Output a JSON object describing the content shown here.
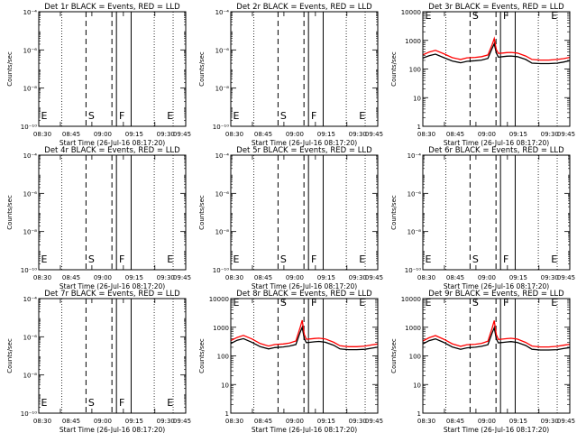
{
  "chart_data": [
    {
      "type": "line",
      "title": "Det 1r BLACK = Events, RED = LLD",
      "xlabel": "Start Time (26-Jul-16 08:17:20)",
      "ylabel": "Counts/sec",
      "xlim": [
        0,
        70
      ],
      "y_scale": "log",
      "ylim": [
        1e-10,
        0.0001
      ],
      "y_ticks": [
        "10⁻¹⁰",
        "10⁻⁸",
        "10⁻⁶",
        "10⁻⁴"
      ],
      "y_tick_exps": [
        -10,
        -8,
        -6,
        -4
      ],
      "x_ticks": [
        "08:30",
        "08:45",
        "09:00",
        "09:15",
        "09:30",
        "09:45"
      ],
      "x_tick_mins": [
        -4.7,
        10.3,
        25.3,
        40.3,
        55.3,
        70.3
      ],
      "markers": [
        {
          "label": "E",
          "x": 0,
          "style": "none"
        },
        {
          "label": "S",
          "x": 22.5,
          "style": "dashed"
        },
        {
          "label": "F",
          "x": 37,
          "style": "dashed-solid"
        },
        {
          "label": "",
          "x": 44,
          "style": "solid"
        },
        {
          "label": "E",
          "x": 60,
          "style": "none"
        }
      ],
      "dotted_x": [
        0,
        11,
        55,
        64
      ],
      "series": []
    },
    {
      "type": "line",
      "title": "Det 2r BLACK = Events, RED = LLD",
      "xlabel": "Start Time (26-Jul-16 08:17:20)",
      "ylabel": "Counts/sec",
      "xlim": [
        0,
        70
      ],
      "y_scale": "log",
      "ylim": [
        1e-10,
        0.0001
      ],
      "y_ticks": [
        "10⁻¹⁰",
        "10⁻⁸",
        "10⁻⁶",
        "10⁻⁴"
      ],
      "y_tick_exps": [
        -10,
        -8,
        -6,
        -4
      ],
      "x_ticks": [
        "08:30",
        "08:45",
        "09:00",
        "09:15",
        "09:30",
        "09:45"
      ],
      "x_tick_mins": [
        -4.7,
        10.3,
        25.3,
        40.3,
        55.3,
        70.3
      ],
      "markers": [
        {
          "label": "E",
          "x": 0,
          "style": "none"
        },
        {
          "label": "S",
          "x": 22.5,
          "style": "dashed"
        },
        {
          "label": "F",
          "x": 37,
          "style": "dashed-solid"
        },
        {
          "label": "",
          "x": 44,
          "style": "solid"
        },
        {
          "label": "E",
          "x": 60,
          "style": "none"
        }
      ],
      "dotted_x": [
        0,
        11,
        55,
        64
      ],
      "series": []
    },
    {
      "type": "line",
      "title": "Det 3r BLACK = Events, RED = LLD",
      "xlabel": "Start Time (26-Jul-16 08:17:20)",
      "ylabel": "Counts/sec",
      "xlim": [
        0,
        70
      ],
      "y_scale": "log",
      "ylim": [
        1,
        10000
      ],
      "y_ticks": [
        "1",
        "10",
        "100",
        "1000",
        "10000"
      ],
      "y_tick_exps": [
        0,
        1,
        2,
        3,
        4
      ],
      "x_ticks": [
        "08:30",
        "08:45",
        "09:00",
        "09:15",
        "09:30",
        "09:45"
      ],
      "x_tick_mins": [
        -4.7,
        10.3,
        25.3,
        40.3,
        55.3,
        70.3
      ],
      "markers": [
        {
          "label": "E",
          "x": 0,
          "style": "none"
        },
        {
          "label": "S",
          "x": 22.5,
          "style": "dashed"
        },
        {
          "label": "F",
          "x": 37,
          "style": "dashed-solid"
        },
        {
          "label": "",
          "x": 44,
          "style": "solid"
        },
        {
          "label": "E",
          "x": 60,
          "style": "none"
        }
      ],
      "dotted_x": [
        0,
        11,
        55,
        64
      ],
      "series": [
        {
          "name": "Events",
          "color": "#000000",
          "x": [
            0,
            3,
            6,
            10,
            14,
            18,
            21,
            25,
            28,
            31,
            33,
            34,
            35,
            36,
            37,
            38,
            40,
            42,
            45,
            49,
            52,
            56,
            60,
            64,
            67,
            70
          ],
          "y": [
            240,
            290,
            330,
            250,
            190,
            165,
            185,
            195,
            205,
            235,
            520,
            760,
            360,
            260,
            265,
            270,
            280,
            285,
            270,
            215,
            160,
            155,
            155,
            160,
            175,
            195
          ]
        },
        {
          "name": "LLD",
          "color": "#ff0000",
          "x": [
            0,
            3,
            6,
            10,
            14,
            18,
            21,
            25,
            28,
            31,
            33,
            34,
            35,
            36,
            37,
            38,
            40,
            42,
            45,
            49,
            52,
            56,
            60,
            64,
            67,
            70
          ],
          "y": [
            310,
            390,
            450,
            340,
            250,
            215,
            245,
            255,
            270,
            310,
            700,
            1150,
            480,
            350,
            355,
            360,
            375,
            380,
            360,
            285,
            215,
            205,
            205,
            215,
            230,
            255
          ]
        }
      ]
    },
    {
      "type": "line",
      "title": "Det 4r BLACK = Events, RED = LLD",
      "xlabel": "Start Time (26-Jul-16 08:17:20)",
      "ylabel": "Counts/sec",
      "xlim": [
        0,
        70
      ],
      "y_scale": "log",
      "ylim": [
        1e-10,
        0.0001
      ],
      "y_ticks": [
        "10⁻¹⁰",
        "10⁻⁸",
        "10⁻⁶",
        "10⁻⁴"
      ],
      "y_tick_exps": [
        -10,
        -8,
        -6,
        -4
      ],
      "x_ticks": [
        "08:30",
        "08:45",
        "09:00",
        "09:15",
        "09:30",
        "09:45"
      ],
      "x_tick_mins": [
        -4.7,
        10.3,
        25.3,
        40.3,
        55.3,
        70.3
      ],
      "markers": [
        {
          "label": "E",
          "x": 0,
          "style": "none"
        },
        {
          "label": "S",
          "x": 22.5,
          "style": "dashed"
        },
        {
          "label": "F",
          "x": 37,
          "style": "dashed-solid"
        },
        {
          "label": "",
          "x": 44,
          "style": "solid"
        },
        {
          "label": "E",
          "x": 60,
          "style": "none"
        }
      ],
      "dotted_x": [
        0,
        11,
        55,
        64
      ],
      "series": []
    },
    {
      "type": "line",
      "title": "Det 5r BLACK = Events, RED = LLD",
      "xlabel": "Start Time (26-Jul-16 08:17:20)",
      "ylabel": "Counts/sec",
      "xlim": [
        0,
        70
      ],
      "y_scale": "log",
      "ylim": [
        1e-10,
        0.0001
      ],
      "y_ticks": [
        "10⁻¹⁰",
        "10⁻⁸",
        "10⁻⁶",
        "10⁻⁴"
      ],
      "y_tick_exps": [
        -10,
        -8,
        -6,
        -4
      ],
      "x_ticks": [
        "08:30",
        "08:45",
        "09:00",
        "09:15",
        "09:30",
        "09:45"
      ],
      "x_tick_mins": [
        -4.7,
        10.3,
        25.3,
        40.3,
        55.3,
        70.3
      ],
      "markers": [
        {
          "label": "E",
          "x": 0,
          "style": "none"
        },
        {
          "label": "S",
          "x": 22.5,
          "style": "dashed"
        },
        {
          "label": "F",
          "x": 37,
          "style": "dashed-solid"
        },
        {
          "label": "",
          "x": 44,
          "style": "solid"
        },
        {
          "label": "E",
          "x": 60,
          "style": "none"
        }
      ],
      "dotted_x": [
        0,
        11,
        55,
        64
      ],
      "series": []
    },
    {
      "type": "line",
      "title": "Det 6r BLACK = Events, RED = LLD",
      "xlabel": "Start Time (26-Jul-16 08:17:20)",
      "ylabel": "Counts/sec",
      "xlim": [
        0,
        70
      ],
      "y_scale": "log",
      "ylim": [
        1e-10,
        0.0001
      ],
      "y_ticks": [
        "10⁻¹⁰",
        "10⁻⁸",
        "10⁻⁶",
        "10⁻⁴"
      ],
      "y_tick_exps": [
        -10,
        -8,
        -6,
        -4
      ],
      "x_ticks": [
        "08:30",
        "08:45",
        "09:00",
        "09:15",
        "09:30",
        "09:45"
      ],
      "x_tick_mins": [
        -4.7,
        10.3,
        25.3,
        40.3,
        55.3,
        70.3
      ],
      "markers": [
        {
          "label": "E",
          "x": 0,
          "style": "none"
        },
        {
          "label": "S",
          "x": 22.5,
          "style": "dashed"
        },
        {
          "label": "F",
          "x": 37,
          "style": "dashed-solid"
        },
        {
          "label": "",
          "x": 44,
          "style": "solid"
        },
        {
          "label": "E",
          "x": 60,
          "style": "none"
        }
      ],
      "dotted_x": [
        0,
        11,
        55,
        64
      ],
      "series": []
    },
    {
      "type": "line",
      "title": "Det 7r BLACK = Events, RED = LLD",
      "xlabel": "Start Time (26-Jul-16 08:17:20)",
      "ylabel": "Counts/sec",
      "xlim": [
        0,
        70
      ],
      "y_scale": "log",
      "ylim": [
        1e-10,
        0.0001
      ],
      "y_ticks": [
        "10⁻¹⁰",
        "10⁻⁸",
        "10⁻⁶",
        "10⁻⁴"
      ],
      "y_tick_exps": [
        -10,
        -8,
        -6,
        -4
      ],
      "x_ticks": [
        "08:30",
        "08:45",
        "09:00",
        "09:15",
        "09:30",
        "09:45"
      ],
      "x_tick_mins": [
        -4.7,
        10.3,
        25.3,
        40.3,
        55.3,
        70.3
      ],
      "markers": [
        {
          "label": "E",
          "x": 0,
          "style": "none"
        },
        {
          "label": "S",
          "x": 22.5,
          "style": "dashed"
        },
        {
          "label": "F",
          "x": 37,
          "style": "dashed-solid"
        },
        {
          "label": "",
          "x": 44,
          "style": "solid"
        },
        {
          "label": "E",
          "x": 60,
          "style": "none"
        }
      ],
      "dotted_x": [
        0,
        11,
        55,
        64
      ],
      "series": []
    },
    {
      "type": "line",
      "title": "Det 8r BLACK = Events, RED = LLD",
      "xlabel": "Start Time (26-Jul-16 08:17:20)",
      "ylabel": "Counts/sec",
      "xlim": [
        0,
        70
      ],
      "y_scale": "log",
      "ylim": [
        1,
        10000
      ],
      "y_ticks": [
        "1",
        "10",
        "100",
        "1000",
        "10000"
      ],
      "y_tick_exps": [
        0,
        1,
        2,
        3,
        4
      ],
      "x_ticks": [
        "08:30",
        "08:45",
        "09:00",
        "09:15",
        "09:30",
        "09:45"
      ],
      "x_tick_mins": [
        -4.7,
        10.3,
        25.3,
        40.3,
        55.3,
        70.3
      ],
      "markers": [
        {
          "label": "E",
          "x": 0,
          "style": "none"
        },
        {
          "label": "S",
          "x": 22.5,
          "style": "dashed"
        },
        {
          "label": "F",
          "x": 37,
          "style": "dashed-solid"
        },
        {
          "label": "",
          "x": 44,
          "style": "solid"
        },
        {
          "label": "E",
          "x": 60,
          "style": "none"
        }
      ],
      "dotted_x": [
        0,
        11,
        55,
        64
      ],
      "series": [
        {
          "name": "Events",
          "color": "#000000",
          "x": [
            0,
            3,
            6,
            10,
            14,
            18,
            21,
            25,
            28,
            31,
            33,
            34,
            35,
            36,
            37,
            38,
            40,
            42,
            45,
            49,
            52,
            56,
            60,
            64,
            67,
            70
          ],
          "y": [
            270,
            350,
            400,
            300,
            210,
            175,
            195,
            205,
            220,
            250,
            650,
            1000,
            400,
            290,
            295,
            300,
            310,
            320,
            300,
            235,
            175,
            165,
            165,
            170,
            185,
            200
          ]
        },
        {
          "name": "LLD",
          "color": "#ff0000",
          "x": [
            0,
            3,
            6,
            10,
            14,
            18,
            21,
            25,
            28,
            31,
            33,
            34,
            35,
            36,
            37,
            38,
            40,
            42,
            45,
            49,
            52,
            56,
            60,
            64,
            67,
            70
          ],
          "y": [
            340,
            440,
            520,
            390,
            270,
            220,
            250,
            260,
            280,
            330,
            950,
            1750,
            560,
            380,
            385,
            390,
            405,
            415,
            390,
            300,
            225,
            210,
            210,
            220,
            240,
            260
          ]
        }
      ]
    },
    {
      "type": "line",
      "title": "Det 9r BLACK = Events, RED = LLD",
      "xlabel": "Start Time (26-Jul-16 08:17:20)",
      "ylabel": "Counts/sec",
      "xlim": [
        0,
        70
      ],
      "y_scale": "log",
      "ylim": [
        1,
        10000
      ],
      "y_ticks": [
        "1",
        "10",
        "100",
        "1000",
        "10000"
      ],
      "y_tick_exps": [
        0,
        1,
        2,
        3,
        4
      ],
      "x_ticks": [
        "08:30",
        "08:45",
        "09:00",
        "09:15",
        "09:30",
        "09:45"
      ],
      "x_tick_mins": [
        -4.7,
        10.3,
        25.3,
        40.3,
        55.3,
        70.3
      ],
      "markers": [
        {
          "label": "E",
          "x": 0,
          "style": "none"
        },
        {
          "label": "S",
          "x": 22.5,
          "style": "dashed"
        },
        {
          "label": "F",
          "x": 37,
          "style": "dashed-solid"
        },
        {
          "label": "",
          "x": 44,
          "style": "solid"
        },
        {
          "label": "E",
          "x": 60,
          "style": "none"
        }
      ],
      "dotted_x": [
        0,
        11,
        55,
        64
      ],
      "series": [
        {
          "name": "Events",
          "color": "#000000",
          "x": [
            0,
            3,
            6,
            10,
            14,
            18,
            21,
            25,
            28,
            31,
            33,
            34,
            35,
            36,
            37,
            38,
            40,
            42,
            45,
            49,
            52,
            56,
            60,
            64,
            67,
            70
          ],
          "y": [
            260,
            340,
            390,
            295,
            205,
            170,
            190,
            200,
            215,
            245,
            620,
            960,
            390,
            285,
            290,
            295,
            305,
            315,
            295,
            230,
            170,
            160,
            160,
            165,
            180,
            195
          ]
        },
        {
          "name": "LLD",
          "color": "#ff0000",
          "x": [
            0,
            3,
            6,
            10,
            14,
            18,
            21,
            25,
            28,
            31,
            33,
            34,
            35,
            36,
            37,
            38,
            40,
            42,
            45,
            49,
            52,
            56,
            60,
            64,
            67,
            70
          ],
          "y": [
            330,
            430,
            510,
            380,
            265,
            215,
            245,
            255,
            275,
            325,
            920,
            1700,
            550,
            375,
            380,
            385,
            400,
            410,
            385,
            295,
            220,
            205,
            205,
            215,
            235,
            255
          ]
        }
      ]
    }
  ]
}
